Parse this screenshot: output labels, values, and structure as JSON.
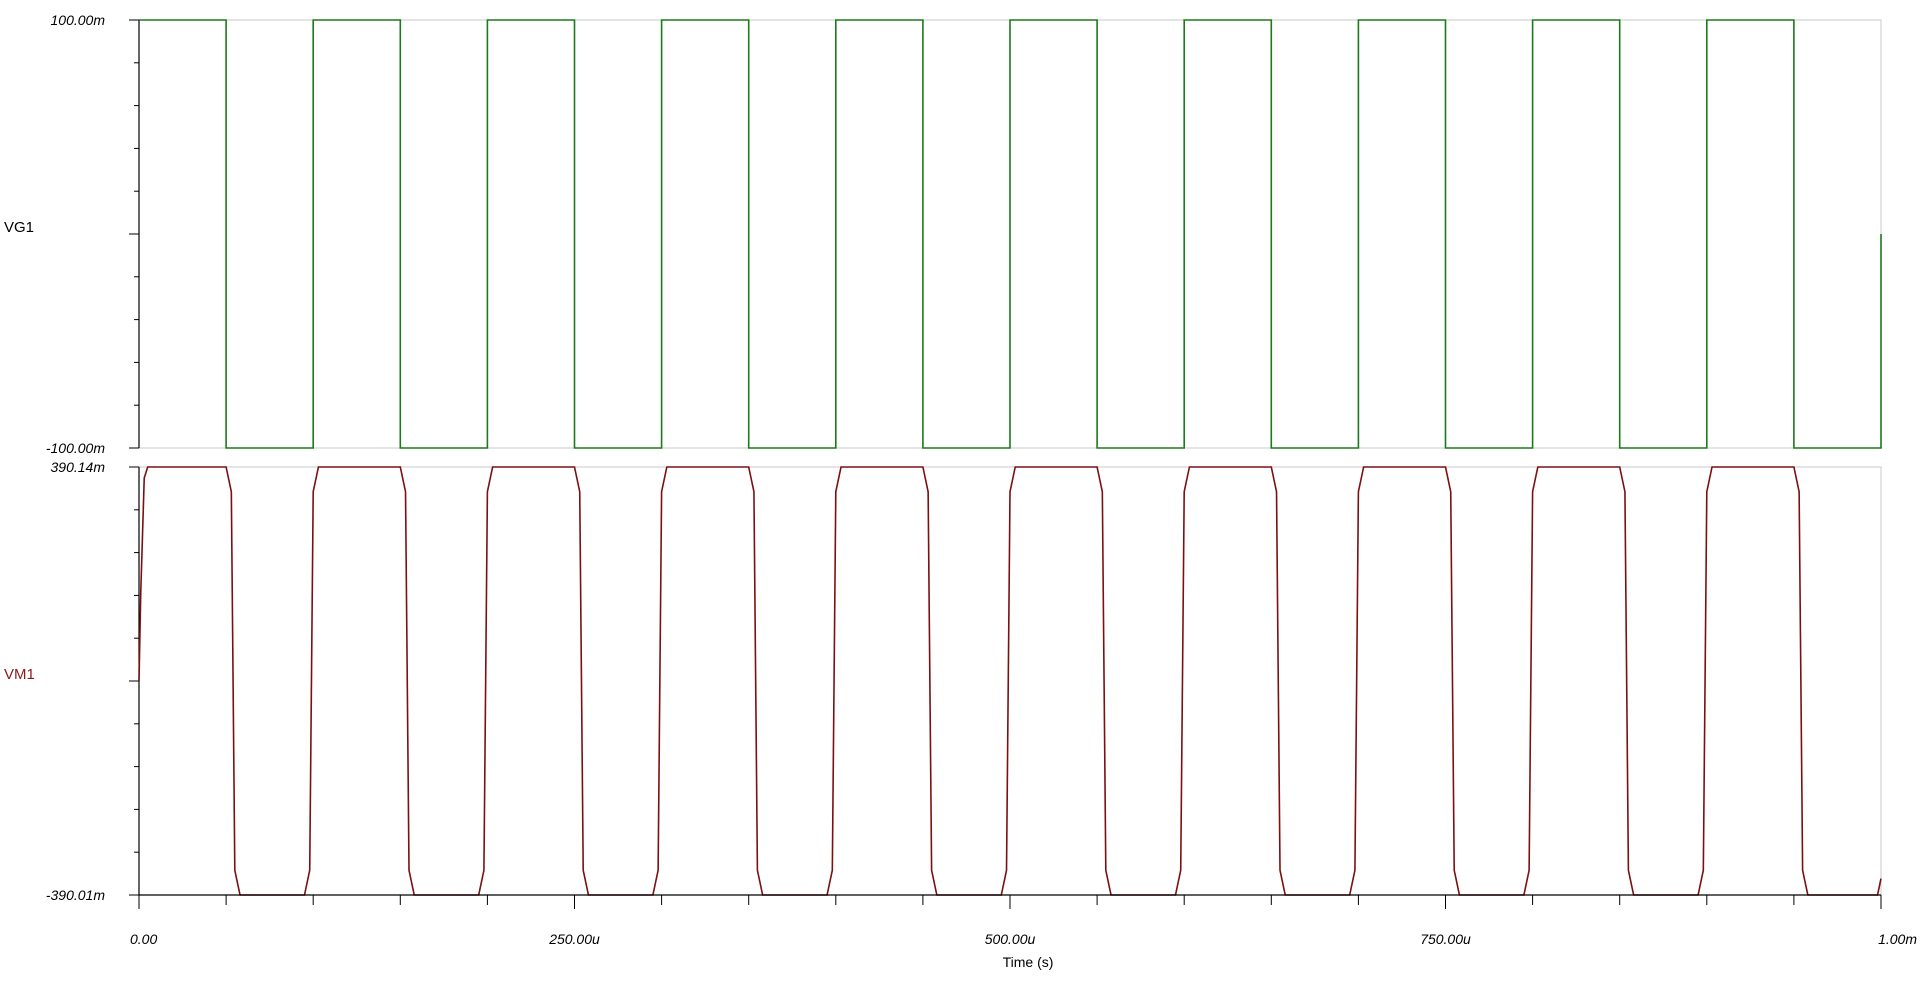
{
  "chart_data": [
    {
      "type": "line",
      "signal": "VG1",
      "color": "#1b7a1b",
      "ylim": [
        -0.1,
        0.1
      ],
      "ytick_labels": {
        "top": "100.00m",
        "bottom": "-100.00m"
      },
      "x": [
        0,
        5e-05,
        5e-05,
        0.0001,
        0.0001,
        0.00015,
        0.00015,
        0.0002,
        0.0002,
        0.00025,
        0.00025,
        0.0003,
        0.0003,
        0.00035,
        0.00035,
        0.0004,
        0.0004,
        0.00045,
        0.00045,
        0.0005,
        0.0005,
        0.00055,
        0.00055,
        0.0006,
        0.0006,
        0.00065,
        0.00065,
        0.0007,
        0.0007,
        0.00075,
        0.00075,
        0.0008,
        0.0008,
        0.00085,
        0.00085,
        0.0009,
        0.0009,
        0.00095,
        0.00095,
        0.001,
        0.001
      ],
      "values": [
        0.1,
        0.1,
        -0.1,
        -0.1,
        0.1,
        0.1,
        -0.1,
        -0.1,
        0.1,
        0.1,
        -0.1,
        -0.1,
        0.1,
        0.1,
        -0.1,
        -0.1,
        0.1,
        0.1,
        -0.1,
        -0.1,
        0.1,
        0.1,
        -0.1,
        -0.1,
        0.1,
        0.1,
        -0.1,
        -0.1,
        0.1,
        0.1,
        -0.1,
        -0.1,
        0.1,
        0.1,
        -0.1,
        -0.1,
        0.1,
        0.1,
        -0.1,
        -0.1,
        0.0
      ]
    },
    {
      "type": "line",
      "signal": "VM1",
      "color": "#7a1010",
      "ylim": [
        -0.39001,
        0.39014
      ],
      "ytick_labels": {
        "top": "390.14m",
        "bottom": "-390.01m"
      },
      "x": [
        0,
        1e-06,
        3e-06,
        5e-06,
        5e-05,
        5.3e-05,
        5.5e-05,
        5.8e-05,
        9.5e-05,
        9.8e-05,
        0.0001,
        0.000103,
        0.00015,
        0.000153,
        0.000155,
        0.000158,
        0.000195,
        0.000198,
        0.0002,
        0.000203,
        0.00025,
        0.000253,
        0.000255,
        0.000258,
        0.000295,
        0.000298,
        0.0003,
        0.000303,
        0.00035,
        0.000353,
        0.000355,
        0.000358,
        0.000395,
        0.000398,
        0.0004,
        0.000403,
        0.00045,
        0.000453,
        0.000455,
        0.000458,
        0.000495,
        0.000498,
        0.0005,
        0.000503,
        0.00055,
        0.000553,
        0.000555,
        0.000558,
        0.000595,
        0.000598,
        0.0006,
        0.000603,
        0.00065,
        0.000653,
        0.000655,
        0.000658,
        0.000695,
        0.000698,
        0.0007,
        0.000703,
        0.00075,
        0.000753,
        0.000755,
        0.000758,
        0.000795,
        0.000798,
        0.0008,
        0.000803,
        0.00085,
        0.000853,
        0.000855,
        0.000858,
        0.000895,
        0.000898,
        0.0009,
        0.000903,
        0.00095,
        0.000953,
        0.000955,
        0.000958,
        0.000998,
        0.001
      ],
      "values": [
        0.0,
        0.16,
        0.37,
        0.39014,
        0.39014,
        0.345,
        -0.345,
        -0.39001,
        -0.39001,
        -0.345,
        0.345,
        0.39014,
        0.39014,
        0.345,
        -0.345,
        -0.39001,
        -0.39001,
        -0.345,
        0.345,
        0.39014,
        0.39014,
        0.345,
        -0.345,
        -0.39001,
        -0.39001,
        -0.345,
        0.345,
        0.39014,
        0.39014,
        0.345,
        -0.345,
        -0.39001,
        -0.39001,
        -0.345,
        0.345,
        0.39014,
        0.39014,
        0.345,
        -0.345,
        -0.39001,
        -0.39001,
        -0.345,
        0.345,
        0.39014,
        0.39014,
        0.345,
        -0.345,
        -0.39001,
        -0.39001,
        -0.345,
        0.345,
        0.39014,
        0.39014,
        0.345,
        -0.345,
        -0.39001,
        -0.39001,
        -0.345,
        0.345,
        0.39014,
        0.39014,
        0.345,
        -0.345,
        -0.39001,
        -0.39001,
        -0.345,
        0.345,
        0.39014,
        0.39014,
        0.345,
        -0.345,
        -0.39001,
        -0.39001,
        -0.345,
        0.345,
        0.39014,
        0.39014,
        0.345,
        -0.345,
        -0.39001,
        -0.39001,
        -0.36
      ]
    }
  ],
  "x_axis": {
    "xlim": [
      0,
      0.001
    ],
    "xlabel": "Time (s)",
    "tick_labels": [
      {
        "value": 0,
        "label": "0.00"
      },
      {
        "value": 0.00025,
        "label": "250.00u"
      },
      {
        "value": 0.0005,
        "label": "500.00u"
      },
      {
        "value": 0.00075,
        "label": "750.00u"
      },
      {
        "value": 0.001,
        "label": "1.00m"
      }
    ]
  },
  "colors": {
    "axis": "#000000",
    "grid": "#c8c8c8",
    "background": "#ffffff"
  }
}
